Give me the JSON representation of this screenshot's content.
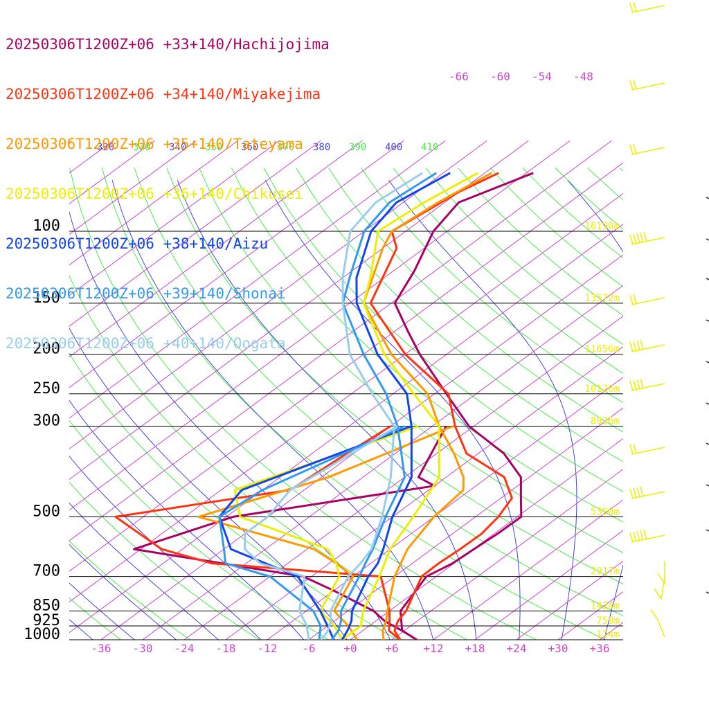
{
  "legend": [
    {
      "label": "20250306T1200Z+06 +33+140/Hachijojima",
      "color": "#aa0066"
    },
    {
      "label": "20250306T1200Z+06 +34+140/Miyakejima",
      "color": "#ff3311"
    },
    {
      "label": "20250306T1200Z+06 +35+140/Tateyama",
      "color": "#ff9900"
    },
    {
      "label": "20250306T1200Z+06 +36+140/Chikusei",
      "color": "#eeee00"
    },
    {
      "label": "20250306T1200Z+06 +38+140/Aizu",
      "color": "#1144ee"
    },
    {
      "label": "20250306T1200Z+06 +39+140/Shonai",
      "color": "#3399ee"
    },
    {
      "label": "20250306T1200Z+06 +40+140/Oogata",
      "color": "#99ccee"
    }
  ],
  "chart_data": {
    "type": "line",
    "chart_kind": "skew-T log-P sounding",
    "y_axis": {
      "scale": "log",
      "unit": "hPa",
      "range": [
        1000,
        70
      ]
    },
    "pressure_levels": [
      {
        "p": 100,
        "label": "100",
        "height": "16190m"
      },
      {
        "p": 150,
        "label": "150",
        "height": "13572m"
      },
      {
        "p": 200,
        "label": "200",
        "height": "11656m"
      },
      {
        "p": 250,
        "label": "250",
        "height": "10126m"
      },
      {
        "p": 300,
        "label": "300",
        "height": "8926m"
      },
      {
        "p": 500,
        "label": "500",
        "height": "5390m"
      },
      {
        "p": 700,
        "label": "700",
        "height": "2917m"
      },
      {
        "p": 850,
        "label": "850",
        "height": "1424m"
      },
      {
        "p": 925,
        "label": "925",
        "height": "759m"
      },
      {
        "p": 1000,
        "label": "1000",
        "height": "124m"
      }
    ],
    "x_tick_labels": [
      "-36",
      "-30",
      "-24",
      "-18",
      "-12",
      "-6",
      "+0",
      "+6",
      "+12",
      "+18",
      "+24",
      "+30",
      "+36"
    ],
    "upper_temp_labels": [
      "-66",
      "-60",
      "-54",
      "-48"
    ],
    "theta_labels": [
      "310",
      "320",
      "330",
      "340",
      "350",
      "360",
      "370",
      "380",
      "390",
      "400",
      "410"
    ],
    "colors": {
      "isotherm": "#cc44cc",
      "theta": "#44ee44",
      "theta_e": "#4444dd",
      "tick_label": "#cc44cc",
      "height_label": "#eeee00",
      "pressure_label": "#000000",
      "barb": "#eeee00"
    },
    "series": [
      {
        "name": "Hachijojima",
        "color": "#aa0066",
        "temp": [
          [
            1000,
            9.6
          ],
          [
            950,
            5.7
          ],
          [
            900,
            3.7
          ],
          [
            850,
            1.6
          ],
          [
            700,
            -1.4
          ],
          [
            650,
            -0.2
          ],
          [
            600,
            0.1
          ],
          [
            550,
            0.5
          ],
          [
            500,
            0.6
          ],
          [
            450,
            -3.1
          ],
          [
            400,
            -7.2
          ],
          [
            350,
            -14.3
          ],
          [
            300,
            -24.7
          ],
          [
            250,
            -34.3
          ],
          [
            200,
            -45.9
          ],
          [
            175,
            -52.3
          ],
          [
            150,
            -59.5
          ],
          [
            125,
            -63
          ],
          [
            100,
            -68
          ],
          [
            85,
            -70
          ],
          [
            72,
            -65
          ]
        ],
        "dew": [
          [
            1000,
            9.6
          ],
          [
            950,
            5.7
          ],
          [
            900,
            1.3
          ],
          [
            850,
            -2.3
          ],
          [
            760,
            -11.8
          ],
          [
            700,
            -19.2
          ],
          [
            600,
            -49
          ],
          [
            500,
            -41
          ],
          [
            420,
            -18
          ],
          [
            400,
            -22
          ],
          [
            300,
            -28
          ]
        ]
      },
      {
        "name": "Miyakejima",
        "color": "#ff3311",
        "temp": [
          [
            1000,
            7.2
          ],
          [
            950,
            4.6
          ],
          [
            900,
            3.2
          ],
          [
            850,
            2.4
          ],
          [
            700,
            -2.1
          ],
          [
            650,
            -2.2
          ],
          [
            600,
            -1.9
          ],
          [
            550,
            -1.8
          ],
          [
            500,
            -2.7
          ],
          [
            450,
            -4.4
          ],
          [
            400,
            -9.6
          ],
          [
            350,
            -19.7
          ],
          [
            300,
            -26.7
          ],
          [
            250,
            -34
          ],
          [
            200,
            -48
          ],
          [
            150,
            -63
          ],
          [
            110,
            -70
          ],
          [
            100,
            -74
          ],
          [
            80,
            -72
          ],
          [
            72,
            -70
          ]
        ],
        "dew": [
          [
            1000,
            7.2
          ],
          [
            950,
            3.8
          ],
          [
            900,
            2
          ],
          [
            850,
            0
          ],
          [
            700,
            -8
          ],
          [
            650,
            -35
          ],
          [
            600,
            -45
          ],
          [
            500,
            -58
          ],
          [
            430,
            -38
          ],
          [
            350,
            -37
          ],
          [
            300,
            -36
          ]
        ]
      },
      {
        "name": "Tateyama",
        "color": "#ff9900",
        "temp": [
          [
            1000,
            4.8
          ],
          [
            950,
            2.9
          ],
          [
            900,
            1.5
          ],
          [
            850,
            -0.3
          ],
          [
            700,
            -6
          ],
          [
            600,
            -9.5
          ],
          [
            500,
            -12
          ],
          [
            430,
            -13
          ],
          [
            400,
            -15.5
          ],
          [
            350,
            -21.5
          ],
          [
            300,
            -29
          ],
          [
            250,
            -37
          ],
          [
            200,
            -50
          ],
          [
            150,
            -64
          ],
          [
            110,
            -72
          ],
          [
            100,
            -74
          ],
          [
            85,
            -73
          ],
          [
            72,
            -71
          ]
        ],
        "dew": [
          [
            1000,
            1
          ],
          [
            925,
            -3
          ],
          [
            850,
            -8
          ],
          [
            700,
            -12
          ],
          [
            650,
            -17
          ],
          [
            600,
            -23
          ],
          [
            550,
            -34
          ],
          [
            500,
            -46
          ],
          [
            400,
            -35
          ],
          [
            300,
            -27
          ]
        ]
      },
      {
        "name": "Chikusei",
        "color": "#eeee00",
        "temp": [
          [
            1000,
            -1.2
          ],
          [
            925,
            -1.2
          ],
          [
            850,
            -3.8
          ],
          [
            700,
            -8.2
          ],
          [
            600,
            -12
          ],
          [
            500,
            -15
          ],
          [
            400,
            -19
          ],
          [
            300,
            -29
          ],
          [
            250,
            -39
          ],
          [
            200,
            -51
          ],
          [
            150,
            -64
          ],
          [
            130,
            -68
          ],
          [
            100,
            -76
          ],
          [
            85,
            -75
          ],
          [
            72,
            -73
          ]
        ],
        "dew": [
          [
            1000,
            -1.2
          ],
          [
            925,
            -5
          ],
          [
            850,
            -10
          ],
          [
            700,
            -14
          ],
          [
            650,
            -17
          ],
          [
            600,
            -21
          ],
          [
            500,
            -40
          ],
          [
            430,
            -46
          ],
          [
            300,
            -32
          ]
        ]
      },
      {
        "name": "Aizu",
        "color": "#1144ee",
        "temp": [
          [
            1000,
            -1.2
          ],
          [
            950,
            -2.2
          ],
          [
            900,
            -3.5
          ],
          [
            850,
            -5.4
          ],
          [
            700,
            -9.8
          ],
          [
            650,
            -11
          ],
          [
            600,
            -13
          ],
          [
            500,
            -18
          ],
          [
            400,
            -23
          ],
          [
            300,
            -33
          ],
          [
            250,
            -40
          ],
          [
            200,
            -52
          ],
          [
            150,
            -65
          ],
          [
            130,
            -70
          ],
          [
            100,
            -77
          ],
          [
            85,
            -79
          ],
          [
            72,
            -77
          ]
        ],
        "dew": [
          [
            1000,
            -2.4
          ],
          [
            925,
            -6
          ],
          [
            850,
            -10
          ],
          [
            700,
            -20
          ],
          [
            600,
            -35
          ],
          [
            500,
            -43
          ],
          [
            430,
            -45
          ],
          [
            300,
            -33
          ]
        ]
      },
      {
        "name": "Shonai",
        "color": "#3399ee",
        "temp": [
          [
            1000,
            -2.7
          ],
          [
            950,
            -3.5
          ],
          [
            900,
            -5
          ],
          [
            850,
            -7
          ],
          [
            700,
            -11.1
          ],
          [
            650,
            -12.8
          ],
          [
            600,
            -14.5
          ],
          [
            500,
            -19
          ],
          [
            400,
            -24
          ],
          [
            300,
            -35
          ],
          [
            250,
            -43
          ],
          [
            200,
            -54
          ],
          [
            150,
            -67
          ],
          [
            130,
            -71
          ],
          [
            100,
            -78
          ],
          [
            85,
            -80
          ],
          [
            72,
            -79
          ]
        ],
        "dew": [
          [
            1000,
            -4.5
          ],
          [
            925,
            -7
          ],
          [
            850,
            -11
          ],
          [
            700,
            -24
          ],
          [
            650,
            -33
          ],
          [
            600,
            -36
          ],
          [
            500,
            -43
          ],
          [
            430,
            -42
          ],
          [
            300,
            -34
          ]
        ]
      },
      {
        "name": "Oogata",
        "color": "#99ccee",
        "temp": [
          [
            1000,
            -4.2
          ],
          [
            950,
            -5
          ],
          [
            900,
            -6.5
          ],
          [
            850,
            -8.5
          ],
          [
            700,
            -12.7
          ],
          [
            650,
            -13.5
          ],
          [
            600,
            -14.7
          ],
          [
            500,
            -19.5
          ],
          [
            400,
            -26
          ],
          [
            300,
            -35.5
          ],
          [
            250,
            -45
          ],
          [
            200,
            -56
          ],
          [
            150,
            -67
          ],
          [
            130,
            -72
          ],
          [
            100,
            -80
          ],
          [
            85,
            -82
          ],
          [
            72,
            -81
          ]
        ],
        "dew": [
          [
            1000,
            -6
          ],
          [
            925,
            -9
          ],
          [
            850,
            -13
          ],
          [
            700,
            -19
          ],
          [
            650,
            -28
          ],
          [
            600,
            -33
          ],
          [
            550,
            -36
          ],
          [
            500,
            -36
          ],
          [
            430,
            -38
          ],
          [
            300,
            -35
          ]
        ]
      }
    ]
  }
}
